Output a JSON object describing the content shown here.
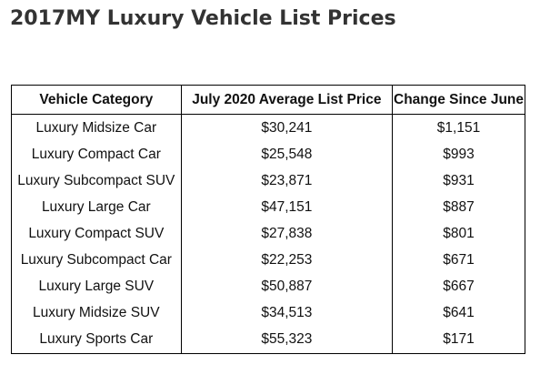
{
  "title": "2017MY Luxury Vehicle List Prices",
  "chart_data": {
    "type": "table",
    "title": "2017MY Luxury Vehicle List Prices",
    "columns": [
      "Vehicle Category",
      "July 2020 Average List Price",
      "Change Since June"
    ],
    "rows": [
      [
        "Luxury Midsize Car",
        "$30,241",
        "$1,151"
      ],
      [
        "Luxury Compact Car",
        "$25,548",
        "$993"
      ],
      [
        "Luxury Subcompact SUV",
        "$23,871",
        "$931"
      ],
      [
        "Luxury Large Car",
        "$47,151",
        "$887"
      ],
      [
        "Luxury Compact SUV",
        "$27,838",
        "$801"
      ],
      [
        "Luxury Subcompact Car",
        "$22,253",
        "$671"
      ],
      [
        "Luxury Large SUV",
        "$50,887",
        "$667"
      ],
      [
        "Luxury Midsize SUV",
        "$34,513",
        "$641"
      ],
      [
        "Luxury Sports Car",
        "$55,323",
        "$171"
      ]
    ]
  }
}
